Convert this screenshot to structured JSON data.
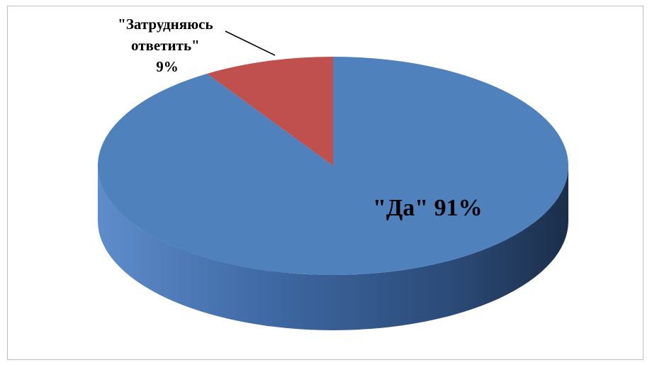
{
  "chart_data": {
    "type": "pie",
    "three_d": true,
    "categories": [
      "\"Затрудняюсь ответить\"",
      "\"Да\""
    ],
    "values": [
      9,
      91
    ],
    "labels": [
      {
        "lines": [
          "\"Затрудняюсь",
          "ответить\"",
          "9%"
        ]
      },
      {
        "lines": [
          "\"Да\" 91%"
        ]
      }
    ],
    "colors": {
      "Затрудняюсь": "#c0504d",
      "Да": "#4f81bd"
    },
    "legend": "none",
    "grid": false
  }
}
